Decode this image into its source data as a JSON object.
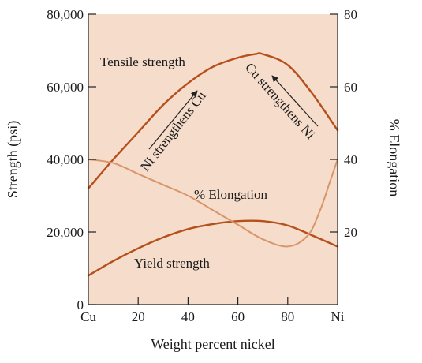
{
  "chart_data": {
    "type": "line",
    "xlabel": "Weight percent nickel",
    "ylabel_left": "Strength (psi)",
    "ylabel_right": "% Elongation",
    "xlim": [
      0,
      100
    ],
    "ylim_left": [
      0,
      80000
    ],
    "ylim_right": [
      0,
      80
    ],
    "x_ticks": [
      {
        "value": 0,
        "label": "Cu"
      },
      {
        "value": 20,
        "label": "20"
      },
      {
        "value": 40,
        "label": "40"
      },
      {
        "value": 60,
        "label": "60"
      },
      {
        "value": 80,
        "label": "80"
      },
      {
        "value": 100,
        "label": "Ni"
      }
    ],
    "y_ticks_left": [
      {
        "value": 0,
        "label": "0"
      },
      {
        "value": 20000,
        "label": "20,000"
      },
      {
        "value": 40000,
        "label": "40,000"
      },
      {
        "value": 60000,
        "label": "60,000"
      },
      {
        "value": 80000,
        "label": "80,000"
      }
    ],
    "y_ticks_right": [
      {
        "value": 20,
        "label": "20"
      },
      {
        "value": 40,
        "label": "40"
      },
      {
        "value": 60,
        "label": "60"
      },
      {
        "value": 80,
        "label": "80"
      }
    ],
    "grid": false,
    "series": [
      {
        "name": "Tensile strength",
        "axis": "left",
        "color": "#b5501c",
        "points": [
          [
            0,
            32000
          ],
          [
            10,
            40000
          ],
          [
            20,
            47500
          ],
          [
            30,
            55000
          ],
          [
            40,
            61000
          ],
          [
            50,
            65500
          ],
          [
            60,
            68000
          ],
          [
            67,
            69000
          ],
          [
            70,
            69000
          ],
          [
            80,
            66000
          ],
          [
            90,
            58000
          ],
          [
            100,
            48000
          ]
        ]
      },
      {
        "name": "Yield strength",
        "axis": "left",
        "color": "#b5501c",
        "points": [
          [
            0,
            8000
          ],
          [
            10,
            12000
          ],
          [
            20,
            15500
          ],
          [
            30,
            18500
          ],
          [
            40,
            20800
          ],
          [
            50,
            22200
          ],
          [
            60,
            23000
          ],
          [
            70,
            23000
          ],
          [
            80,
            21800
          ],
          [
            90,
            19000
          ],
          [
            100,
            16000
          ]
        ]
      },
      {
        "name": "% Elongation",
        "axis": "right",
        "color": "#d9956a",
        "points": [
          [
            0,
            40
          ],
          [
            10,
            39
          ],
          [
            20,
            36
          ],
          [
            30,
            33
          ],
          [
            40,
            30
          ],
          [
            50,
            26
          ],
          [
            60,
            22
          ],
          [
            70,
            18
          ],
          [
            80,
            16
          ],
          [
            88,
            19
          ],
          [
            93,
            26
          ],
          [
            97,
            34
          ],
          [
            100,
            40
          ]
        ]
      }
    ],
    "annotations": {
      "tensile": "Tensile strength",
      "yield": "Yield strength",
      "elongation": "% Elongation",
      "ni_strengthens_cu": "Ni strengthens Cu",
      "cu_strengthens_ni": "Cu strengthens Ni"
    },
    "colors": {
      "plot_background": "#f5dccb",
      "strength_curve": "#b5501c",
      "elongation_curve": "#d9956a",
      "axes": "#222222"
    }
  }
}
